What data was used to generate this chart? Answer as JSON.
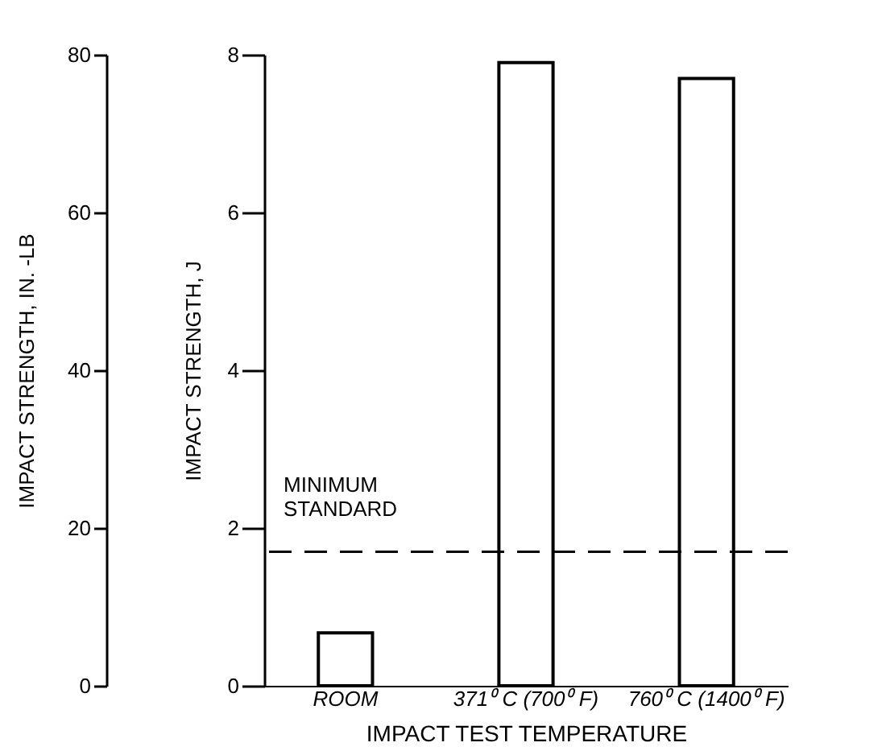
{
  "chart_data": {
    "type": "bar",
    "categories": [
      "ROOM",
      "371⁰ C (700⁰ F)",
      "760⁰ C (1400⁰ F)"
    ],
    "values": [
      0.67,
      7.9,
      7.7
    ],
    "color": "#ffffff",
    "xlabel": "IMPACT TEST TEMPERATURE",
    "ylabel": "IMPACT STRENGTH, J",
    "y2label": "IMPACT STRENGTH, IN. -LB",
    "ylim": [
      0,
      8
    ],
    "yticks": [
      0,
      2,
      4,
      6,
      8
    ],
    "y2lim": [
      0,
      80
    ],
    "y2ticks": [
      0,
      20,
      40,
      60,
      80
    ],
    "ref_lines": [
      {
        "axis": "y",
        "value": 1.7,
        "label": "MINIMUM STANDARD",
        "line_style": "dashed"
      }
    ],
    "grid": false
  }
}
